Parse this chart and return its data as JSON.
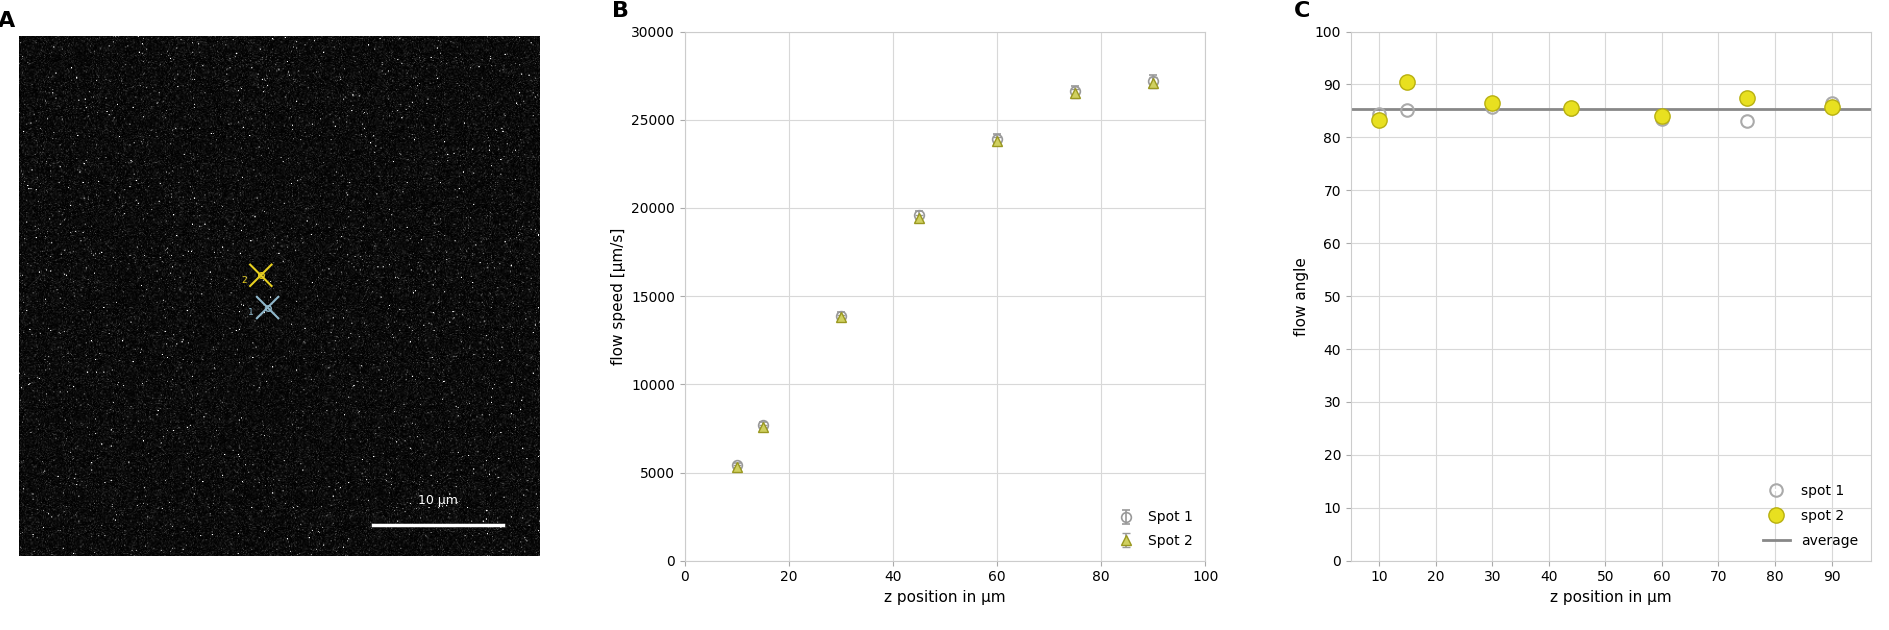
{
  "panel_label_fontsize": 16,
  "panel_label_fontweight": "bold",
  "B": {
    "xlabel": "z position in μm",
    "ylabel": "flow speed [μm/s]",
    "xlim": [
      0,
      100
    ],
    "ylim": [
      0,
      30000
    ],
    "xticks": [
      0,
      20,
      40,
      60,
      80,
      100
    ],
    "yticks": [
      0,
      5000,
      10000,
      15000,
      20000,
      25000,
      30000
    ],
    "spot1_x": [
      10,
      15,
      30,
      45,
      60,
      75,
      90
    ],
    "spot1_y": [
      5400,
      7700,
      13900,
      19600,
      23900,
      26600,
      27200
    ],
    "spot1_yerr": [
      150,
      180,
      200,
      250,
      280,
      300,
      350
    ],
    "spot2_x": [
      10,
      15,
      30,
      45,
      60,
      75,
      90
    ],
    "spot2_y": [
      5300,
      7600,
      13800,
      19400,
      23800,
      26500,
      27100
    ],
    "spot2_yerr": [
      100,
      120,
      150,
      200,
      220,
      260,
      300
    ],
    "spot1_color": "#999999",
    "spot2_color": "#d0d060",
    "spot1_marker": "o",
    "spot2_marker": "^",
    "spot1_label": "Spot 1",
    "spot2_label": "Spot 2",
    "grid_color": "#d8d8d8",
    "bg_color": "#ffffff"
  },
  "C": {
    "xlabel": "z position in μm",
    "ylabel": "flow angle",
    "xlim": [
      5,
      97
    ],
    "ylim": [
      0,
      100
    ],
    "xticks": [
      10,
      20,
      30,
      40,
      50,
      60,
      70,
      80,
      90
    ],
    "yticks": [
      0,
      10,
      20,
      30,
      40,
      50,
      60,
      70,
      80,
      90,
      100
    ],
    "spot1_x": [
      10,
      15,
      30,
      44,
      60,
      75,
      90
    ],
    "spot1_y": [
      84.5,
      85.2,
      85.8,
      85.3,
      83.5,
      83.0,
      86.5
    ],
    "spot2_x": [
      10,
      15,
      30,
      44,
      60,
      75,
      90
    ],
    "spot2_y": [
      83.2,
      90.5,
      86.5,
      85.5,
      84.0,
      87.5,
      85.8
    ],
    "average_y": 85.3,
    "spot1_color": "#aaaaaa",
    "spot2_color": "#e8e020",
    "spot1_label": "spot 1",
    "spot2_label": "spot 2",
    "avg_label": "average",
    "avg_color": "#888888",
    "grid_color": "#d8d8d8",
    "bg_color": "#ffffff"
  },
  "scalebar_text": "10 μm"
}
